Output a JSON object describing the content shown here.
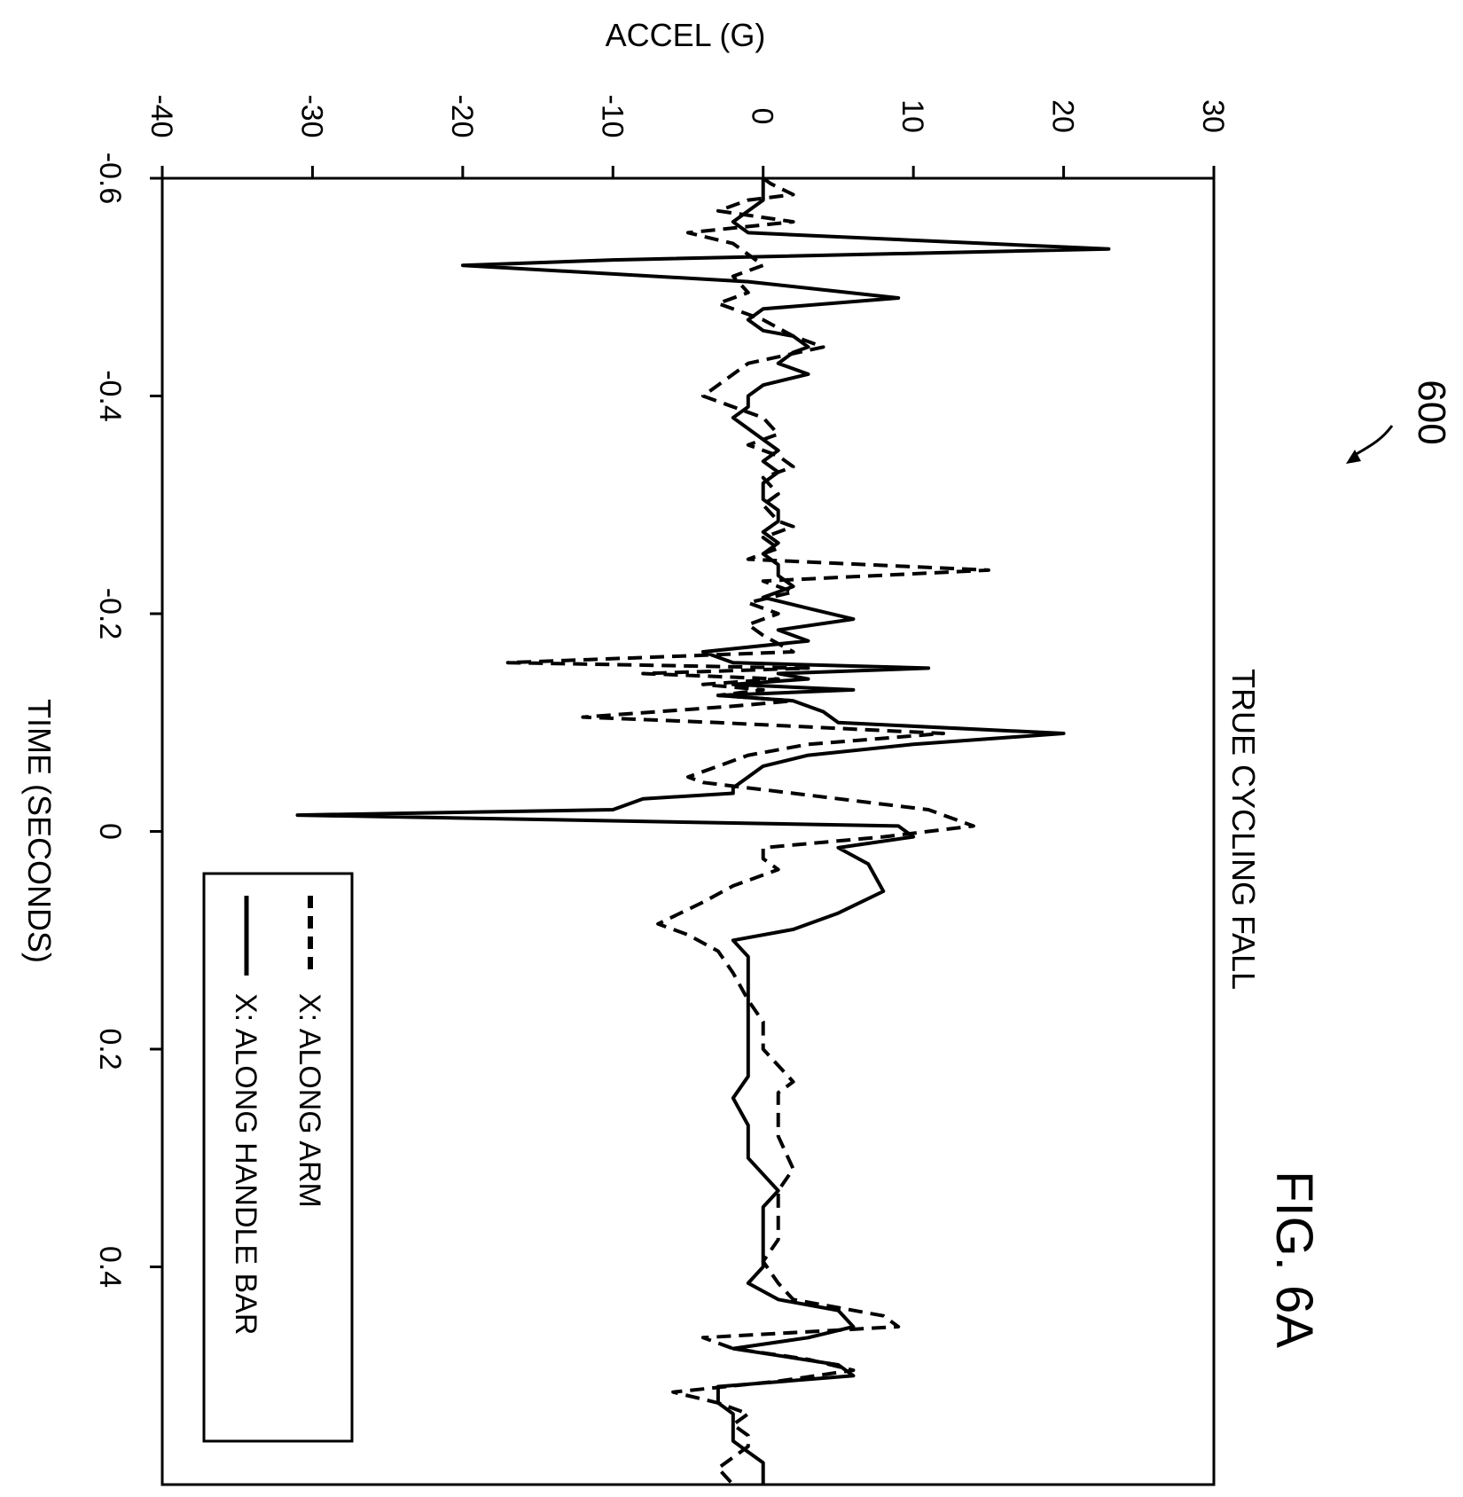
{
  "figure": {
    "label": "FIG. 6A",
    "reference_number": "600"
  },
  "chart_data": {
    "type": "line",
    "title": "TRUE CYCLING FALL",
    "xlabel": "TIME (SECONDS)",
    "ylabel": "ACCEL (G)",
    "xlim": [
      -0.6,
      0.6
    ],
    "ylim": [
      -40,
      30
    ],
    "xticks": [
      -0.6,
      -0.4,
      -0.2,
      0,
      0.2,
      0.4
    ],
    "xtick_labels": [
      "-0.6",
      "-0.4",
      "-0.2",
      "0",
      "0.2",
      "0.4"
    ],
    "yticks": [
      -40,
      -30,
      -20,
      -10,
      0,
      10,
      20,
      30
    ],
    "ytick_labels": [
      "-40",
      "-30",
      "-20",
      "-10",
      "0",
      "10",
      "20",
      "30"
    ],
    "grid": false,
    "legend_position": "bottom-left",
    "orientation": "rotated 90 degrees clockwise",
    "series": [
      {
        "name": "X: ALONG ARM",
        "style": "dashed",
        "points": [
          [
            -0.6,
            0
          ],
          [
            -0.595,
            0.5
          ],
          [
            -0.585,
            2
          ],
          [
            -0.58,
            -1
          ],
          [
            -0.57,
            -3
          ],
          [
            -0.56,
            2
          ],
          [
            -0.55,
            -5
          ],
          [
            -0.54,
            -2
          ],
          [
            -0.53,
            -1
          ],
          [
            -0.52,
            0
          ],
          [
            -0.51,
            -2
          ],
          [
            -0.495,
            -1
          ],
          [
            -0.485,
            -3
          ],
          [
            -0.47,
            0
          ],
          [
            -0.455,
            2
          ],
          [
            -0.445,
            4
          ],
          [
            -0.43,
            -1
          ],
          [
            -0.41,
            -3
          ],
          [
            -0.4,
            -4
          ],
          [
            -0.38,
            0
          ],
          [
            -0.365,
            1
          ],
          [
            -0.355,
            -1
          ],
          [
            -0.345,
            1
          ],
          [
            -0.335,
            2
          ],
          [
            -0.325,
            0
          ],
          [
            -0.31,
            1
          ],
          [
            -0.3,
            0
          ],
          [
            -0.285,
            1
          ],
          [
            -0.28,
            2
          ],
          [
            -0.27,
            0
          ],
          [
            -0.26,
            1
          ],
          [
            -0.25,
            -1
          ],
          [
            -0.24,
            15
          ],
          [
            -0.23,
            0
          ],
          [
            -0.22,
            2
          ],
          [
            -0.21,
            -1
          ],
          [
            -0.2,
            1
          ],
          [
            -0.19,
            -1
          ],
          [
            -0.18,
            0
          ],
          [
            -0.165,
            2
          ],
          [
            -0.155,
            -17
          ],
          [
            -0.15,
            3
          ],
          [
            -0.145,
            -8
          ],
          [
            -0.14,
            1
          ],
          [
            -0.135,
            -4
          ],
          [
            -0.13,
            0
          ],
          [
            -0.125,
            -3
          ],
          [
            -0.12,
            2
          ],
          [
            -0.115,
            -2
          ],
          [
            -0.105,
            -12
          ],
          [
            -0.1,
            -3
          ],
          [
            -0.09,
            12
          ],
          [
            -0.08,
            3
          ],
          [
            -0.07,
            -1
          ],
          [
            -0.06,
            -3
          ],
          [
            -0.05,
            -5
          ],
          [
            -0.045,
            -4
          ],
          [
            -0.035,
            2
          ],
          [
            -0.02,
            11
          ],
          [
            -0.005,
            14
          ],
          [
            0.005,
            8
          ],
          [
            0.015,
            0
          ],
          [
            0.025,
            0
          ],
          [
            0.035,
            1
          ],
          [
            0.05,
            -2
          ],
          [
            0.065,
            -4
          ],
          [
            0.085,
            -7
          ],
          [
            0.095,
            -5
          ],
          [
            0.11,
            -3
          ],
          [
            0.13,
            -2
          ],
          [
            0.155,
            -1
          ],
          [
            0.175,
            0
          ],
          [
            0.2,
            0
          ],
          [
            0.23,
            2
          ],
          [
            0.24,
            1
          ],
          [
            0.26,
            1
          ],
          [
            0.28,
            1
          ],
          [
            0.31,
            2
          ],
          [
            0.33,
            1
          ],
          [
            0.355,
            1
          ],
          [
            0.375,
            1
          ],
          [
            0.395,
            0
          ],
          [
            0.415,
            1
          ],
          [
            0.43,
            2
          ],
          [
            0.445,
            8
          ],
          [
            0.455,
            9
          ],
          [
            0.465,
            -4
          ],
          [
            0.475,
            -2
          ],
          [
            0.485,
            3
          ],
          [
            0.495,
            6
          ],
          [
            0.505,
            1
          ],
          [
            0.515,
            -6
          ],
          [
            0.525,
            -3
          ],
          [
            0.535,
            -1
          ],
          [
            0.545,
            -2
          ],
          [
            0.555,
            -1
          ],
          [
            0.565,
            -1
          ],
          [
            0.575,
            -2
          ],
          [
            0.585,
            -3
          ],
          [
            0.6,
            -2
          ]
        ]
      },
      {
        "name": "X: ALONG HANDLE BAR",
        "style": "solid",
        "points": [
          [
            -0.6,
            0
          ],
          [
            -0.58,
            0
          ],
          [
            -0.56,
            -2
          ],
          [
            -0.55,
            -1
          ],
          [
            -0.535,
            23
          ],
          [
            -0.525,
            -10
          ],
          [
            -0.52,
            -20
          ],
          [
            -0.505,
            -1
          ],
          [
            -0.49,
            9
          ],
          [
            -0.48,
            0
          ],
          [
            -0.47,
            -1
          ],
          [
            -0.46,
            0
          ],
          [
            -0.455,
            2
          ],
          [
            -0.445,
            3
          ],
          [
            -0.44,
            2
          ],
          [
            -0.43,
            1
          ],
          [
            -0.42,
            3
          ],
          [
            -0.41,
            0
          ],
          [
            -0.4,
            -1
          ],
          [
            -0.39,
            -1
          ],
          [
            -0.38,
            -2
          ],
          [
            -0.36,
            0
          ],
          [
            -0.35,
            1
          ],
          [
            -0.34,
            0
          ],
          [
            -0.33,
            1
          ],
          [
            -0.32,
            0
          ],
          [
            -0.305,
            0
          ],
          [
            -0.295,
            1
          ],
          [
            -0.285,
            1
          ],
          [
            -0.275,
            0
          ],
          [
            -0.265,
            1
          ],
          [
            -0.255,
            0
          ],
          [
            -0.245,
            1
          ],
          [
            -0.235,
            1
          ],
          [
            -0.225,
            2
          ],
          [
            -0.215,
            0
          ],
          [
            -0.205,
            3
          ],
          [
            -0.195,
            6
          ],
          [
            -0.185,
            1
          ],
          [
            -0.175,
            3
          ],
          [
            -0.165,
            -4
          ],
          [
            -0.155,
            -2
          ],
          [
            -0.15,
            11
          ],
          [
            -0.145,
            1
          ],
          [
            -0.14,
            3
          ],
          [
            -0.135,
            -2
          ],
          [
            -0.13,
            6
          ],
          [
            -0.125,
            -3
          ],
          [
            -0.12,
            2
          ],
          [
            -0.11,
            4
          ],
          [
            -0.1,
            5
          ],
          [
            -0.09,
            20
          ],
          [
            -0.08,
            10
          ],
          [
            -0.07,
            3
          ],
          [
            -0.06,
            0
          ],
          [
            -0.05,
            -1
          ],
          [
            -0.04,
            -2
          ],
          [
            -0.035,
            -2
          ],
          [
            -0.03,
            -8
          ],
          [
            -0.02,
            -10
          ],
          [
            -0.015,
            -31
          ],
          [
            -0.005,
            9
          ],
          [
            0.005,
            10
          ],
          [
            0.015,
            5
          ],
          [
            0.03,
            7
          ],
          [
            0.055,
            8
          ],
          [
            0.075,
            5
          ],
          [
            0.09,
            2
          ],
          [
            0.1,
            -2
          ],
          [
            0.115,
            -1
          ],
          [
            0.135,
            -1
          ],
          [
            0.155,
            -1
          ],
          [
            0.175,
            -1
          ],
          [
            0.2,
            -1
          ],
          [
            0.225,
            -1
          ],
          [
            0.245,
            -2
          ],
          [
            0.27,
            -1
          ],
          [
            0.3,
            -1
          ],
          [
            0.315,
            0
          ],
          [
            0.33,
            1
          ],
          [
            0.345,
            0
          ],
          [
            0.365,
            0
          ],
          [
            0.38,
            0
          ],
          [
            0.4,
            0
          ],
          [
            0.415,
            -1
          ],
          [
            0.43,
            1
          ],
          [
            0.44,
            5
          ],
          [
            0.455,
            6
          ],
          [
            0.465,
            3
          ],
          [
            0.475,
            -2
          ],
          [
            0.49,
            5
          ],
          [
            0.5,
            6
          ],
          [
            0.51,
            -3
          ],
          [
            0.525,
            -3
          ],
          [
            0.535,
            -2
          ],
          [
            0.55,
            -2
          ],
          [
            0.56,
            -2
          ],
          [
            0.57,
            -1
          ],
          [
            0.58,
            0
          ],
          [
            0.59,
            0
          ],
          [
            0.6,
            0
          ]
        ]
      }
    ]
  }
}
